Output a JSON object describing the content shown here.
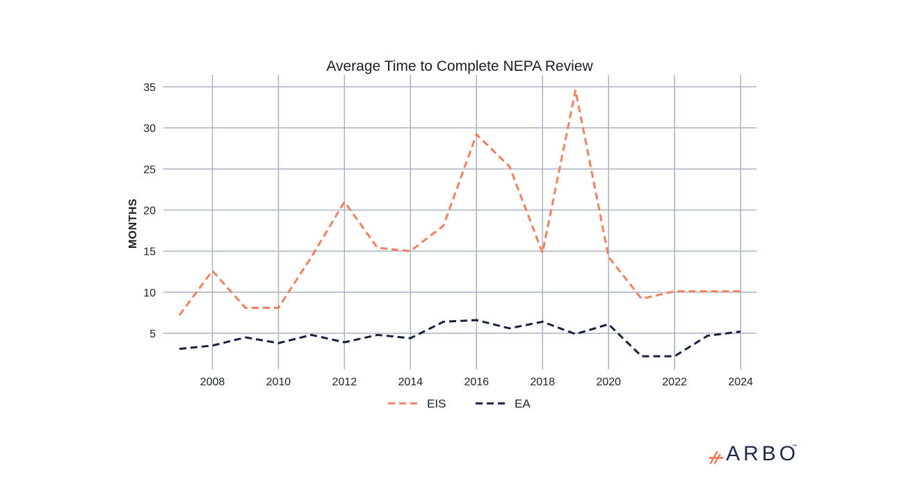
{
  "chart_data": {
    "type": "line",
    "title": "Average Time to Complete NEPA Review",
    "xlabel": "",
    "ylabel": "MONTHS",
    "x": [
      2007,
      2008,
      2009,
      2010,
      2011,
      2012,
      2013,
      2014,
      2015,
      2016,
      2017,
      2018,
      2019,
      2020,
      2021,
      2022,
      2023,
      2024
    ],
    "xticks": [
      2008,
      2010,
      2012,
      2014,
      2016,
      2018,
      2020,
      2022,
      2024
    ],
    "yticks": [
      5,
      10,
      15,
      20,
      25,
      30,
      35
    ],
    "xlim": [
      2007,
      2024
    ],
    "ylim": [
      1.5,
      36
    ],
    "grid": true,
    "legend_position": "bottom",
    "series": [
      {
        "name": "EIS",
        "color": "#f47f5c",
        "style": "dashed",
        "values": [
          7.2,
          12.6,
          8.1,
          8.1,
          14.3,
          21.0,
          15.4,
          15.0,
          18.1,
          29.2,
          25.3,
          14.8,
          34.6,
          14.3,
          9.2,
          10.1,
          10.1,
          10.1
        ]
      },
      {
        "name": "EA",
        "color": "#14213d",
        "style": "dashed",
        "values": [
          3.1,
          3.5,
          4.5,
          3.8,
          4.8,
          3.9,
          4.8,
          4.4,
          6.4,
          6.6,
          5.6,
          6.4,
          4.9,
          6.1,
          2.2,
          2.2,
          4.7,
          5.2
        ]
      }
    ]
  },
  "brand": {
    "logo_text": "ARBO",
    "trademark": "™"
  }
}
